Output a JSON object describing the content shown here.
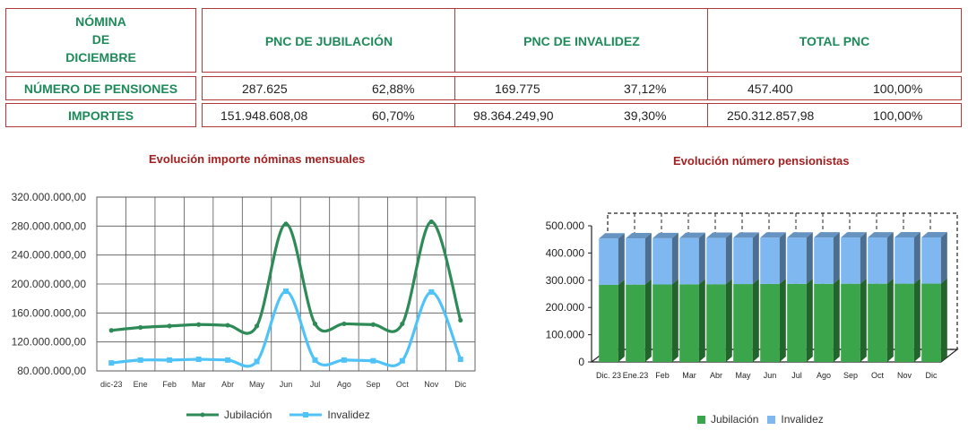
{
  "table": {
    "corner": [
      "NÓMINA",
      "DE",
      "DICIEMBRE"
    ],
    "headers": [
      "PNC DE JUBILACIÓN",
      "PNC DE INVALIDEZ",
      "TOTAL PNC"
    ],
    "rows": [
      {
        "label": "NÚMERO DE PENSIONES",
        "cells": [
          [
            "287.625",
            "62,88%"
          ],
          [
            "169.775",
            "37,12%"
          ],
          [
            "457.400",
            "100,00%"
          ]
        ]
      },
      {
        "label": "IMPORTES",
        "cells": [
          [
            "151.948.608,08",
            "60,70%"
          ],
          [
            "98.364.249,90",
            "39,30%"
          ],
          [
            "250.312.857,98",
            "100,00%"
          ]
        ]
      }
    ]
  },
  "chart_data": [
    {
      "type": "line",
      "title": "Evolución importe nóminas mensuales",
      "categories": [
        "dic-23",
        "Ene",
        "Feb",
        "Mar",
        "Abr",
        "May",
        "Jun",
        "Jul",
        "Ago",
        "Sep",
        "Oct",
        "Nov",
        "Dic"
      ],
      "yticks": [
        "80.000.000,00",
        "120.000.000,00",
        "160.000.000,00",
        "200.000.000,00",
        "240.000.000,00",
        "280.000.000,00",
        "320.000.000,00"
      ],
      "ylim": [
        80000000,
        320000000
      ],
      "series": [
        {
          "name": "Jubilación",
          "color": "#2e8b57",
          "values": [
            136000000,
            140000000,
            142000000,
            144000000,
            143000000,
            142000000,
            283000000,
            145000000,
            145000000,
            144000000,
            145000000,
            286000000,
            150000000
          ]
        },
        {
          "name": "Invalidez",
          "color": "#4fc3f7",
          "values": [
            91000000,
            95000000,
            95000000,
            96000000,
            95000000,
            93000000,
            190000000,
            95000000,
            95000000,
            94000000,
            94000000,
            189000000,
            96000000
          ]
        }
      ],
      "grid": true,
      "legend": "bottom"
    },
    {
      "type": "bar",
      "stacked": true,
      "three_d": true,
      "title": "Evolución número pensionistas",
      "categories": [
        "Dic. 23",
        "Ene.23",
        "Feb",
        "Mar",
        "Abr",
        "May",
        "Jun",
        "Jul",
        "Ago",
        "Sep",
        "Oct",
        "Nov",
        "Dic"
      ],
      "yticks": [
        "0",
        "100.000",
        "200.000",
        "300.000",
        "400.000",
        "500.000"
      ],
      "ylim": [
        0,
        500000
      ],
      "series": [
        {
          "name": "Jubilación",
          "color": "#3aa54a",
          "values": [
            283000,
            284000,
            284500,
            285000,
            285500,
            286000,
            286500,
            286800,
            287000,
            287200,
            287300,
            287500,
            287625
          ]
        },
        {
          "name": "Invalidez",
          "color": "#7fb8f0",
          "values": [
            170000,
            169800,
            169900,
            170000,
            169900,
            169800,
            169800,
            169700,
            169700,
            169700,
            169700,
            169800,
            169775
          ]
        }
      ],
      "legend": "bottom"
    }
  ]
}
